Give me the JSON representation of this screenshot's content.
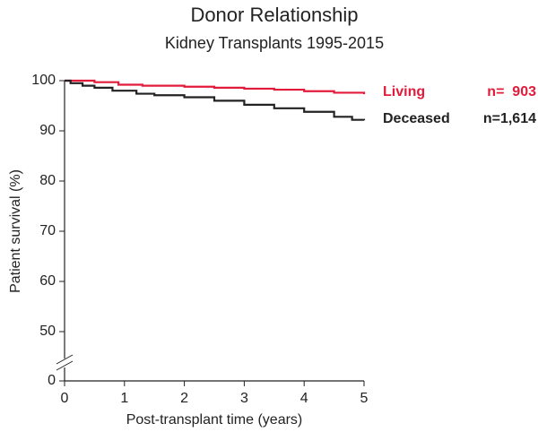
{
  "chart_data": {
    "type": "step",
    "title": "Donor Relationship",
    "subtitle": "Kidney Transplants 1995-2015",
    "x_label": "Post-transplant time (years)",
    "y_label": "Patient survival (%)",
    "xlim": [
      0,
      5
    ],
    "xticks": [
      0,
      1,
      2,
      3,
      4,
      5
    ],
    "ylim": [
      0,
      100
    ],
    "yticks": [
      0,
      50,
      60,
      70,
      80,
      90,
      100
    ],
    "ybreak": [
      0,
      50
    ],
    "series": [
      {
        "name": "Living",
        "n_label": "n=  903",
        "color": "#e31b3b",
        "x": [
          0,
          0.5,
          0.9,
          1.3,
          2,
          2.5,
          3,
          3.5,
          4,
          4.5,
          5
        ],
        "values": [
          100,
          99.7,
          99.2,
          99,
          98.8,
          98.6,
          98.4,
          98.2,
          97.9,
          97.6,
          97.3
        ]
      },
      {
        "name": "Deceased",
        "n_label": "n=1,614",
        "color": "#222222",
        "x": [
          0,
          0.1,
          0.3,
          0.5,
          0.8,
          1.2,
          1.5,
          2,
          2.5,
          3,
          3.5,
          4,
          4.5,
          4.8,
          5
        ],
        "values": [
          100,
          99.5,
          99,
          98.6,
          98,
          97.4,
          97.1,
          96.7,
          96,
          95.2,
          94.5,
          93.8,
          92.8,
          92.2,
          92.1
        ]
      }
    ]
  }
}
